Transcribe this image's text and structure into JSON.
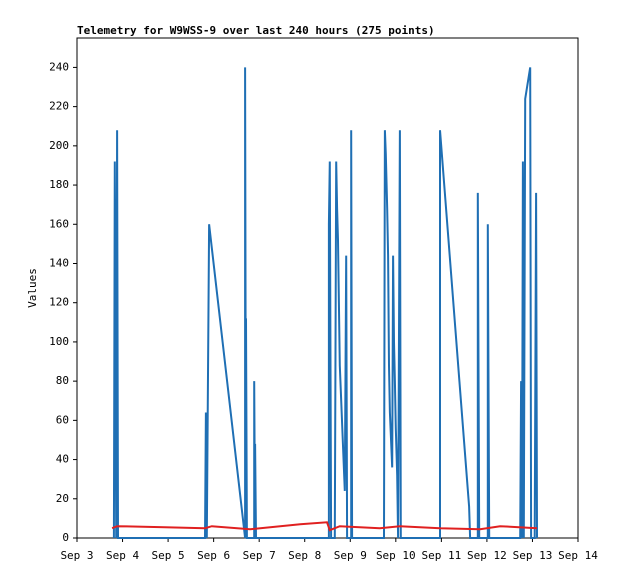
{
  "chart_data": {
    "type": "line",
    "title": "Telemetry for W9WSS-9 over last 240 hours (275 points)",
    "y_label": "Values",
    "xlim": [
      3,
      14
    ],
    "xticks": [
      {
        "value": 3,
        "label": "Sep 3"
      },
      {
        "value": 4,
        "label": "Sep 4"
      },
      {
        "value": 5,
        "label": "Sep 5"
      },
      {
        "value": 6,
        "label": "Sep 6"
      },
      {
        "value": 7,
        "label": "Sep 7"
      },
      {
        "value": 8,
        "label": "Sep 8"
      },
      {
        "value": 9,
        "label": "Sep 9"
      },
      {
        "value": 10,
        "label": "Sep 10"
      },
      {
        "value": 11,
        "label": "Sep 11"
      },
      {
        "value": 12,
        "label": "Sep 12"
      },
      {
        "value": 13,
        "label": "Sep 13"
      },
      {
        "value": 14,
        "label": "Sep 14"
      }
    ],
    "ylim": [
      0,
      255
    ],
    "yticks": [
      0,
      20,
      40,
      60,
      80,
      100,
      120,
      140,
      160,
      180,
      200,
      220,
      240
    ],
    "series": [
      {
        "color": "#1f6fb4",
        "x": [
          3.81,
          3.83,
          3.86,
          3.88,
          3.9,
          5.81,
          5.83,
          5.85,
          5.9,
          6.69,
          6.69,
          6.71,
          6.71,
          6.73,
          6.89,
          6.89,
          6.91,
          6.91,
          6.93,
          8.53,
          8.53,
          8.55,
          8.58,
          8.66,
          8.69,
          8.71,
          8.73,
          8.75,
          8.77,
          8.88,
          8.91,
          8.93,
          9.02,
          9.02,
          9.04,
          9.74,
          9.76,
          9.78,
          9.81,
          9.83,
          9.85,
          9.87,
          9.92,
          9.94,
          9.96,
          9.98,
          10.0,
          10.03,
          10.05,
          10.09,
          10.11,
          10.97,
          10.97,
          11.61,
          11.63,
          11.8,
          11.8,
          11.83,
          12.02,
          12.02,
          12.05,
          12.73,
          12.75,
          12.77,
          12.79,
          12.81,
          12.84,
          12.95,
          12.97,
          13.05,
          13.08,
          13.1
        ],
        "values": [
          0,
          192,
          0,
          208,
          0,
          0,
          64,
          0,
          160,
          0,
          240,
          0,
          112,
          0,
          0,
          80,
          0,
          48,
          0,
          0,
          160,
          192,
          0,
          0,
          192,
          168,
          152,
          120,
          88,
          24,
          144,
          0,
          0,
          208,
          0,
          0,
          208,
          196,
          168,
          144,
          88,
          64,
          36,
          144,
          100,
          80,
          56,
          32,
          0,
          208,
          0,
          0,
          208,
          16,
          0,
          0,
          176,
          0,
          0,
          160,
          0,
          0,
          80,
          0,
          192,
          0,
          224,
          240,
          0,
          0,
          176,
          0
        ]
      },
      {
        "color": "#e02020",
        "x": [
          3.77,
          3.88,
          4.93,
          5.81,
          5.96,
          6.8,
          7.9,
          8.49,
          8.55,
          8.77,
          9.65,
          10.09,
          10.97,
          11.85,
          12.29,
          13.1
        ],
        "values": [
          5,
          6,
          5.5,
          5,
          6,
          4.5,
          7,
          8,
          4,
          6,
          5,
          6,
          5,
          4.5,
          6,
          5
        ]
      }
    ]
  }
}
